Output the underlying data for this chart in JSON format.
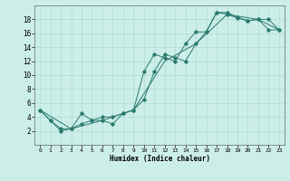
{
  "xlabel": "Humidex (Indice chaleur)",
  "background_color": "#cceee8",
  "line_color": "#2a7a6f",
  "xlim": [
    -0.5,
    23.5
  ],
  "ylim": [
    0,
    20
  ],
  "xticks": [
    0,
    1,
    2,
    3,
    4,
    5,
    6,
    7,
    8,
    9,
    10,
    11,
    12,
    13,
    14,
    15,
    16,
    17,
    18,
    19,
    20,
    21,
    22,
    23
  ],
  "yticks": [
    2,
    4,
    6,
    8,
    10,
    12,
    14,
    16,
    18
  ],
  "line1_x": [
    0,
    1,
    2,
    3,
    4,
    5,
    6,
    7,
    8,
    9,
    10,
    11,
    12,
    13,
    14,
    15,
    16,
    17,
    18,
    19,
    20,
    21,
    22,
    23
  ],
  "line1_y": [
    5.0,
    3.5,
    2.3,
    2.3,
    4.5,
    3.5,
    3.5,
    3.0,
    4.5,
    5.0,
    6.5,
    10.5,
    13.0,
    12.5,
    12.0,
    14.5,
    16.2,
    19.0,
    18.7,
    18.2,
    17.8,
    18.0,
    18.0,
    16.5
  ],
  "line2_x": [
    0,
    1,
    2,
    3,
    4,
    5,
    6,
    7,
    8,
    9,
    10,
    11,
    12,
    13,
    14,
    15,
    16,
    17,
    18,
    19,
    20,
    21,
    22,
    23
  ],
  "line2_y": [
    5.0,
    3.5,
    2.0,
    2.3,
    3.0,
    3.5,
    4.0,
    4.0,
    4.5,
    5.0,
    10.5,
    13.0,
    12.5,
    12.0,
    14.5,
    16.2,
    16.2,
    19.0,
    19.0,
    18.3,
    17.8,
    18.0,
    16.5,
    16.5
  ],
  "line3_x": [
    0,
    3,
    6,
    9,
    12,
    15,
    18,
    21,
    23
  ],
  "line3_y": [
    5.0,
    2.3,
    3.5,
    5.0,
    12.0,
    14.5,
    18.7,
    18.0,
    16.5
  ]
}
